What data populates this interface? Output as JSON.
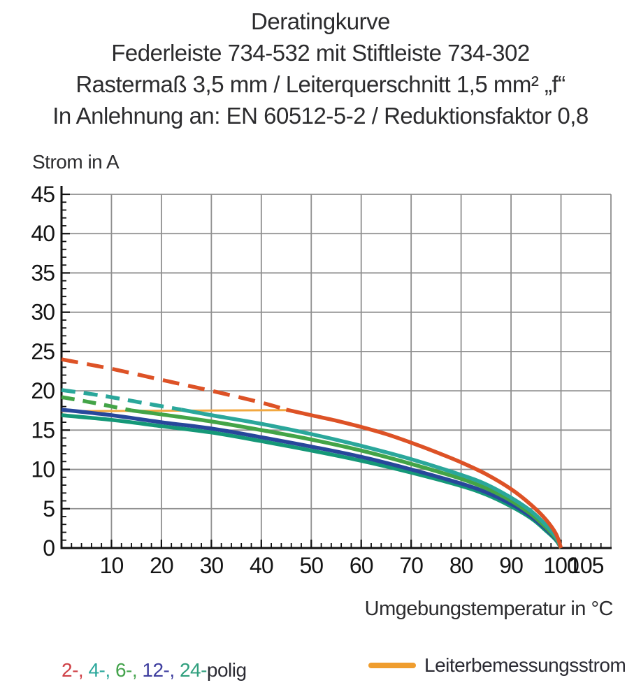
{
  "title": {
    "line1": "Deratingkurve",
    "line2": "Federleiste 734-532 mit Stiftleiste 734-302",
    "line3": "Rastermaß 3,5 mm / Leiterquerschnitt 1,5 mm² „f“",
    "line4": "In Anlehnung an: EN 60512-5-2 / Reduktionsfaktor 0,8"
  },
  "legend": {
    "poles": [
      {
        "label": "2-, ",
        "color": "#cf4046"
      },
      {
        "label": "4-, ",
        "color": "#2aa79b"
      },
      {
        "label": "6-, ",
        "color": "#44a34c"
      },
      {
        "label": "12-, ",
        "color": "#3f3f9f"
      },
      {
        "label": "24-",
        "color": "#2f9f7d"
      }
    ],
    "suffix": {
      "label": "polig",
      "color": "#2b2b33"
    },
    "rated": {
      "label": "Leiterbemessungsstrom",
      "swatch_color": "#ef9d2e",
      "text_color": "#2b2b33"
    }
  },
  "chart_data": {
    "type": "line",
    "title": "Deratingkurve",
    "subtitle": "Federleiste 734-532 mit Stiftleiste 734-302 / Rastermaß 3,5 mm / Leiterquerschnitt 1,5 mm² „f“ / In Anlehnung an: EN 60512-5-2 / Reduktionsfaktor 0,8",
    "xlabel": "Umgebungstemperatur in °C",
    "ylabel": "Strom in A",
    "xlim": [
      0,
      110
    ],
    "ylim": [
      0,
      45
    ],
    "grid": true,
    "legend_position": "bottom",
    "x_gridlines": [
      10,
      20,
      30,
      40,
      50,
      60,
      70,
      80,
      90,
      100
    ],
    "x_tick_labels": [
      10,
      20,
      30,
      40,
      50,
      60,
      70,
      80,
      90,
      100,
      105
    ],
    "y_tick_labels": [
      0,
      5,
      10,
      15,
      20,
      25,
      30,
      35,
      40,
      45
    ],
    "x_minor_step": 2,
    "y_minor_step": 1,
    "rated_current_A": 17.4,
    "dash_meaning": "gestrichelt: Strom oberhalb Leiterbemessungsstrom",
    "series": [
      {
        "name": "2-polig",
        "color": "#dd5226",
        "width": 5.5,
        "dash_until_x": 45,
        "dash": "24 13",
        "points": [
          [
            0,
            24
          ],
          [
            10,
            22.8
          ],
          [
            20,
            21.4
          ],
          [
            30,
            20.0
          ],
          [
            40,
            18.5
          ],
          [
            45,
            17.6
          ],
          [
            50,
            16.9
          ],
          [
            55,
            16.2
          ],
          [
            60,
            15.4
          ],
          [
            65,
            14.5
          ],
          [
            70,
            13.4
          ],
          [
            75,
            12.2
          ],
          [
            80,
            10.9
          ],
          [
            85,
            9.4
          ],
          [
            90,
            7.5
          ],
          [
            94,
            5.5
          ],
          [
            97,
            3.6
          ],
          [
            99,
            1.8
          ],
          [
            100,
            0
          ]
        ]
      },
      {
        "name": "4-polig",
        "color": "#2aa79b",
        "width": 5.5,
        "dash_until_x": 24,
        "dash": "20 12",
        "points": [
          [
            0,
            20.1
          ],
          [
            8,
            19.4
          ],
          [
            16,
            18.5
          ],
          [
            24,
            17.6
          ],
          [
            30,
            16.9
          ],
          [
            40,
            15.8
          ],
          [
            50,
            14.5
          ],
          [
            60,
            13.0
          ],
          [
            70,
            11.3
          ],
          [
            80,
            9.3
          ],
          [
            85,
            8.1
          ],
          [
            90,
            6.4
          ],
          [
            94,
            4.7
          ],
          [
            97,
            2.9
          ],
          [
            99,
            1.4
          ],
          [
            100,
            0
          ]
        ]
      },
      {
        "name": "6-polig",
        "color": "#43a447",
        "width": 5.5,
        "dash_until_x": 14,
        "dash": "19 12",
        "points": [
          [
            0,
            19.2
          ],
          [
            7,
            18.4
          ],
          [
            14,
            17.5
          ],
          [
            20,
            17.0
          ],
          [
            30,
            16.1
          ],
          [
            40,
            15.0
          ],
          [
            50,
            13.8
          ],
          [
            60,
            12.4
          ],
          [
            70,
            10.7
          ],
          [
            80,
            8.8
          ],
          [
            85,
            7.6
          ],
          [
            90,
            6.0
          ],
          [
            94,
            4.3
          ],
          [
            97,
            2.6
          ],
          [
            99,
            1.2
          ],
          [
            100,
            0
          ]
        ]
      },
      {
        "name": "12-polig",
        "color": "#27479b",
        "width": 5.5,
        "dash_until_x": null,
        "dash": null,
        "points": [
          [
            0,
            17.6
          ],
          [
            10,
            16.9
          ],
          [
            20,
            16.0
          ],
          [
            30,
            15.2
          ],
          [
            40,
            14.1
          ],
          [
            50,
            12.9
          ],
          [
            60,
            11.6
          ],
          [
            70,
            10.0
          ],
          [
            80,
            8.2
          ],
          [
            85,
            7.1
          ],
          [
            90,
            5.6
          ],
          [
            94,
            4.0
          ],
          [
            97,
            2.4
          ],
          [
            99,
            1.1
          ],
          [
            100,
            0
          ]
        ]
      },
      {
        "name": "24-polig",
        "color": "#159878",
        "width": 5.5,
        "dash_until_x": null,
        "dash": null,
        "points": [
          [
            0,
            16.9
          ],
          [
            10,
            16.3
          ],
          [
            20,
            15.5
          ],
          [
            30,
            14.7
          ],
          [
            40,
            13.6
          ],
          [
            50,
            12.4
          ],
          [
            60,
            11.1
          ],
          [
            70,
            9.6
          ],
          [
            80,
            7.9
          ],
          [
            85,
            6.8
          ],
          [
            90,
            5.3
          ],
          [
            94,
            3.8
          ],
          [
            97,
            2.2
          ],
          [
            99,
            1.0
          ],
          [
            100,
            0
          ]
        ]
      },
      {
        "name": "Leiterbemessungsstrom",
        "color": "#f2a840",
        "width": 3,
        "dash_until_x": null,
        "dash": null,
        "points": [
          [
            0,
            17.4
          ],
          [
            45,
            17.55
          ]
        ]
      }
    ]
  }
}
